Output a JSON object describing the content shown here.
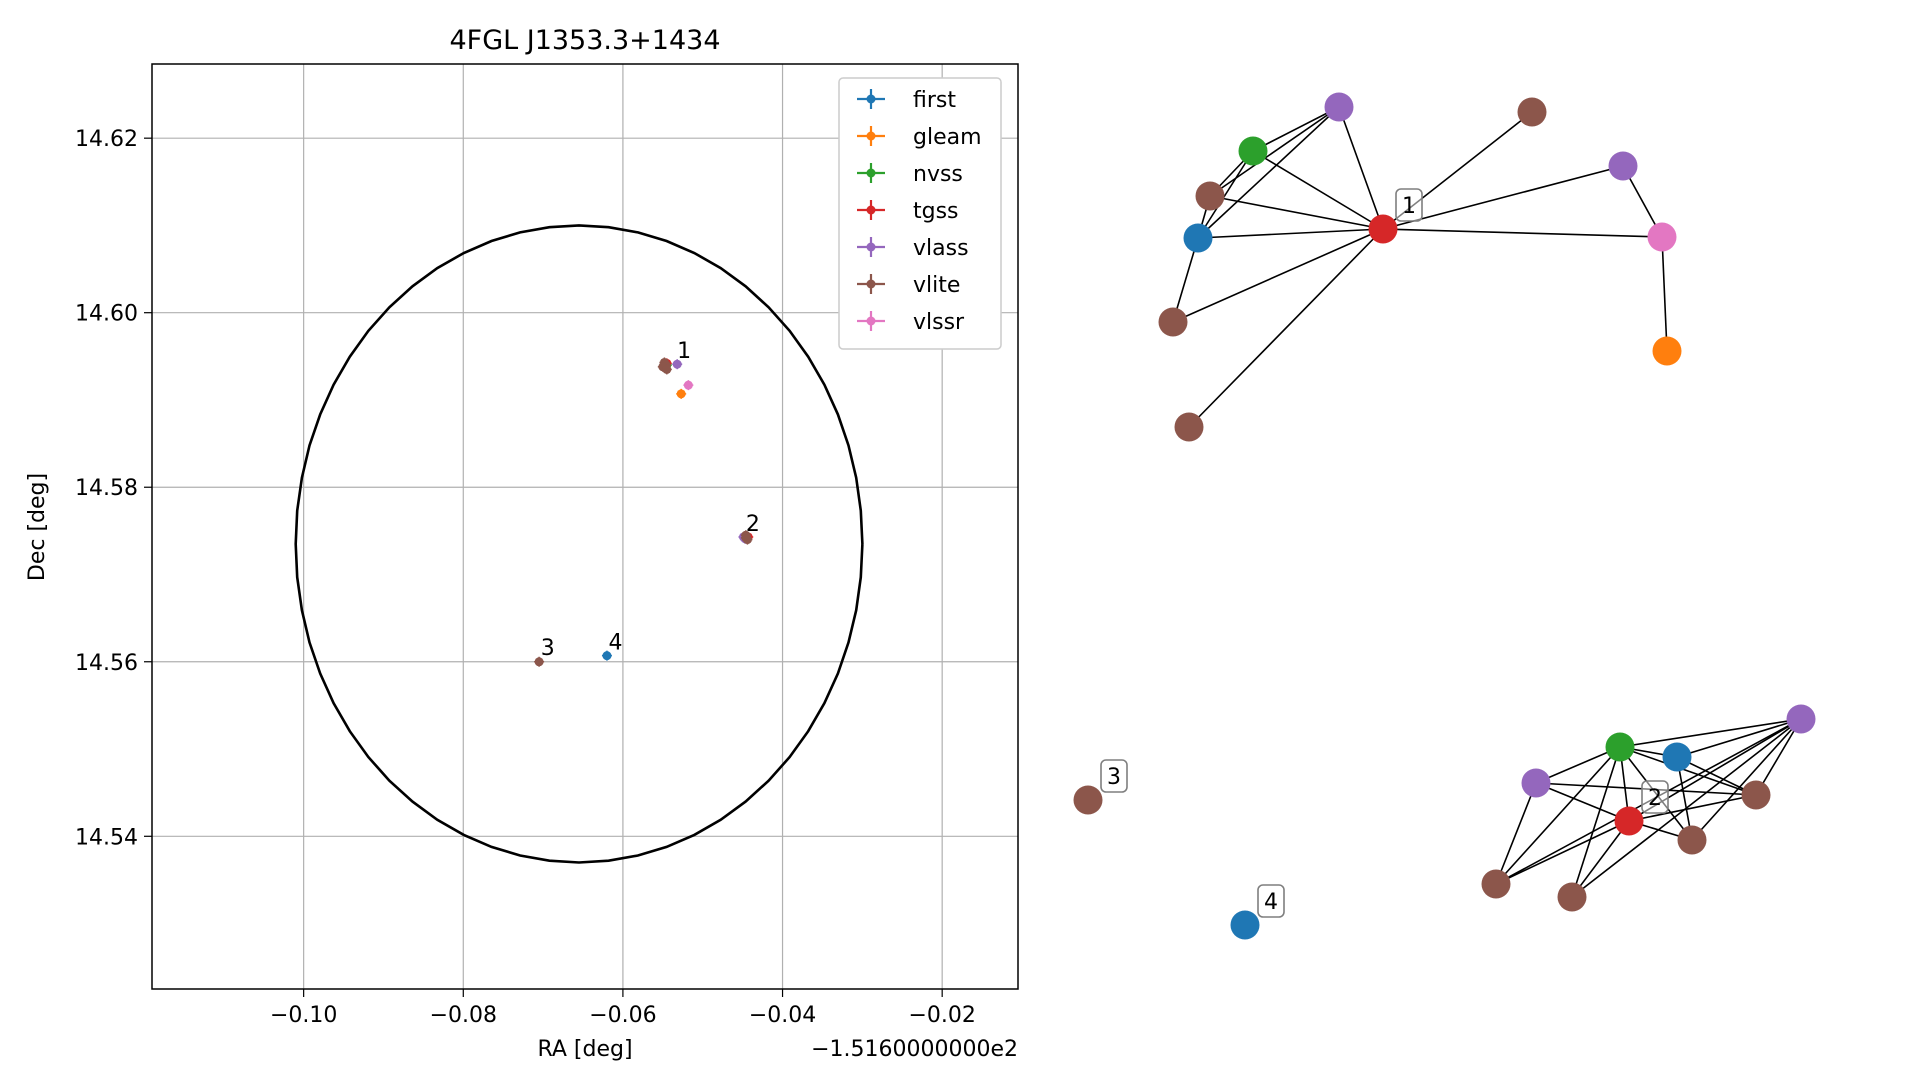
{
  "chart_data": [
    {
      "type": "scatter",
      "title": "4FGL J1353.3+1434",
      "xlabel": "RA [deg]",
      "ylabel": "Dec [deg]",
      "x_offset_text": "−1.5160000000e2",
      "xlim": [
        -0.119,
        -0.0105
      ],
      "ylim": [
        14.5225,
        14.6285
      ],
      "x_ticks": [
        -0.1,
        -0.08,
        -0.06,
        -0.04,
        -0.02
      ],
      "x_tick_labels": [
        "−0.10",
        "−0.08",
        "−0.06",
        "−0.04",
        "−0.02"
      ],
      "y_ticks": [
        14.54,
        14.56,
        14.58,
        14.6,
        14.62
      ],
      "y_tick_labels": [
        "14.54",
        "14.56",
        "14.58",
        "14.60",
        "14.62"
      ],
      "grid": true,
      "legend_position": "top-right",
      "colors": {
        "first": "#1f77b4",
        "gleam": "#ff7f0e",
        "nvss": "#2ca02c",
        "tgss": "#d62728",
        "vlass": "#9467bd",
        "vlite": "#8c564b",
        "vlssr": "#e377c2"
      },
      "circle": {
        "center": [
          -0.0655,
          14.5735
        ],
        "radius_x": 0.0355,
        "radius_y": 0.0365
      },
      "series": [
        {
          "name": "first",
          "points": [
            [
              -0.062,
              14.5607
            ]
          ]
        },
        {
          "name": "gleam",
          "points": [
            [
              -0.0527,
              14.5907
            ]
          ]
        },
        {
          "name": "nvss",
          "points": [
            [
              -0.0545,
              14.594
            ]
          ]
        },
        {
          "name": "tgss",
          "points": [
            [
              -0.0545,
              14.5942
            ],
            [
              -0.0443,
              14.5743
            ]
          ]
        },
        {
          "name": "vlass",
          "points": [
            [
              -0.0532,
              14.5941
            ],
            [
              -0.0449,
              14.5743
            ],
            [
              -0.0447,
              14.5741
            ]
          ]
        },
        {
          "name": "vlite",
          "points": [
            [
              -0.055,
              14.5938
            ],
            [
              -0.0548,
              14.5943
            ],
            [
              -0.0546,
              14.594
            ],
            [
              -0.0545,
              14.5935
            ],
            [
              -0.0446,
              14.5742
            ],
            [
              -0.0444,
              14.574
            ],
            [
              -0.0446,
              14.5745
            ],
            [
              -0.0705,
              14.56
            ]
          ]
        },
        {
          "name": "vlssr",
          "points": [
            [
              -0.0518,
              14.5917
            ]
          ]
        }
      ],
      "annotations": [
        {
          "text": "1",
          "x": -0.0532,
          "y": 14.5948
        },
        {
          "text": "2",
          "x": -0.0446,
          "y": 14.575
        },
        {
          "text": "3",
          "x": -0.0703,
          "y": 14.5608
        },
        {
          "text": "4",
          "x": -0.0618,
          "y": 14.5614
        }
      ]
    },
    {
      "type": "network",
      "colors": {
        "first": "#1f77b4",
        "gleam": "#ff7f0e",
        "nvss": "#2ca02c",
        "tgss": "#d62728",
        "vlass": "#9467bd",
        "vlite": "#8c564b",
        "vlssr": "#e377c2"
      },
      "nodes": [
        {
          "id": "c1_tgss",
          "survey": "tgss",
          "label": "1"
        },
        {
          "id": "c1_nvss",
          "survey": "nvss"
        },
        {
          "id": "c1_vlass_a",
          "survey": "vlass"
        },
        {
          "id": "c1_vlite_a",
          "survey": "vlite"
        },
        {
          "id": "c1_first",
          "survey": "first"
        },
        {
          "id": "c1_vlite_b",
          "survey": "vlite"
        },
        {
          "id": "c1_vlite_c",
          "survey": "vlite"
        },
        {
          "id": "c1_vlite_d",
          "survey": "vlite"
        },
        {
          "id": "c1_vlass_b",
          "survey": "vlass"
        },
        {
          "id": "c1_vlssr",
          "survey": "vlssr"
        },
        {
          "id": "c1_gleam",
          "survey": "gleam"
        },
        {
          "id": "c2_tgss",
          "survey": "tgss",
          "label": "2"
        },
        {
          "id": "c2_nvss",
          "survey": "nvss"
        },
        {
          "id": "c2_first",
          "survey": "first"
        },
        {
          "id": "c2_vlass_a",
          "survey": "vlass"
        },
        {
          "id": "c2_vlass_b",
          "survey": "vlass"
        },
        {
          "id": "c2_vlite_a",
          "survey": "vlite"
        },
        {
          "id": "c2_vlite_b",
          "survey": "vlite"
        },
        {
          "id": "c2_vlite_c",
          "survey": "vlite"
        },
        {
          "id": "c2_vlite_d",
          "survey": "vlite"
        },
        {
          "id": "c3_vlite",
          "survey": "vlite",
          "label": "3"
        },
        {
          "id": "c4_first",
          "survey": "first",
          "label": "4"
        }
      ],
      "edges": [
        [
          "c1_tgss",
          "c1_nvss"
        ],
        [
          "c1_tgss",
          "c1_vlass_a"
        ],
        [
          "c1_tgss",
          "c1_vlite_a"
        ],
        [
          "c1_tgss",
          "c1_first"
        ],
        [
          "c1_tgss",
          "c1_vlite_b"
        ],
        [
          "c1_tgss",
          "c1_vlite_c"
        ],
        [
          "c1_tgss",
          "c1_vlite_d"
        ],
        [
          "c1_tgss",
          "c1_vlass_b"
        ],
        [
          "c1_tgss",
          "c1_vlssr"
        ],
        [
          "c1_vlass_b",
          "c1_vlssr"
        ],
        [
          "c1_vlssr",
          "c1_gleam"
        ],
        [
          "c1_nvss",
          "c1_vlass_a"
        ],
        [
          "c1_nvss",
          "c1_vlite_a"
        ],
        [
          "c1_nvss",
          "c1_first"
        ],
        [
          "c1_vlass_a",
          "c1_vlite_a"
        ],
        [
          "c1_vlass_a",
          "c1_first"
        ],
        [
          "c1_vlite_a",
          "c1_first"
        ],
        [
          "c1_first",
          "c1_vlite_b"
        ],
        [
          "c2_nvss",
          "c2_vlass_a"
        ],
        [
          "c2_nvss",
          "c2_vlass_b"
        ],
        [
          "c2_nvss",
          "c2_first"
        ],
        [
          "c2_nvss",
          "c2_tgss"
        ],
        [
          "c2_nvss",
          "c2_vlite_a"
        ],
        [
          "c2_nvss",
          "c2_vlite_b"
        ],
        [
          "c2_nvss",
          "c2_vlite_c"
        ],
        [
          "c2_nvss",
          "c2_vlite_d"
        ],
        [
          "c2_tgss",
          "c2_vlass_a"
        ],
        [
          "c2_tgss",
          "c2_vlass_b"
        ],
        [
          "c2_tgss",
          "c2_vlite_a"
        ],
        [
          "c2_tgss",
          "c2_vlite_b"
        ],
        [
          "c2_tgss",
          "c2_vlite_c"
        ],
        [
          "c2_tgss",
          "c2_vlite_d"
        ],
        [
          "c2_first",
          "c2_vlass_b"
        ],
        [
          "c2_first",
          "c2_vlite_a"
        ],
        [
          "c2_first",
          "c2_vlite_b"
        ],
        [
          "c2_vlass_b",
          "c2_vlite_a"
        ],
        [
          "c2_vlass_b",
          "c2_vlite_b"
        ],
        [
          "c2_vlass_a",
          "c2_vlite_a"
        ],
        [
          "c2_vlite_c",
          "c2_vlass_a"
        ],
        [
          "c2_vlite_d",
          "c2_vlass_b"
        ],
        [
          "c2_vlite_c",
          "c2_vlass_b"
        ]
      ]
    }
  ]
}
